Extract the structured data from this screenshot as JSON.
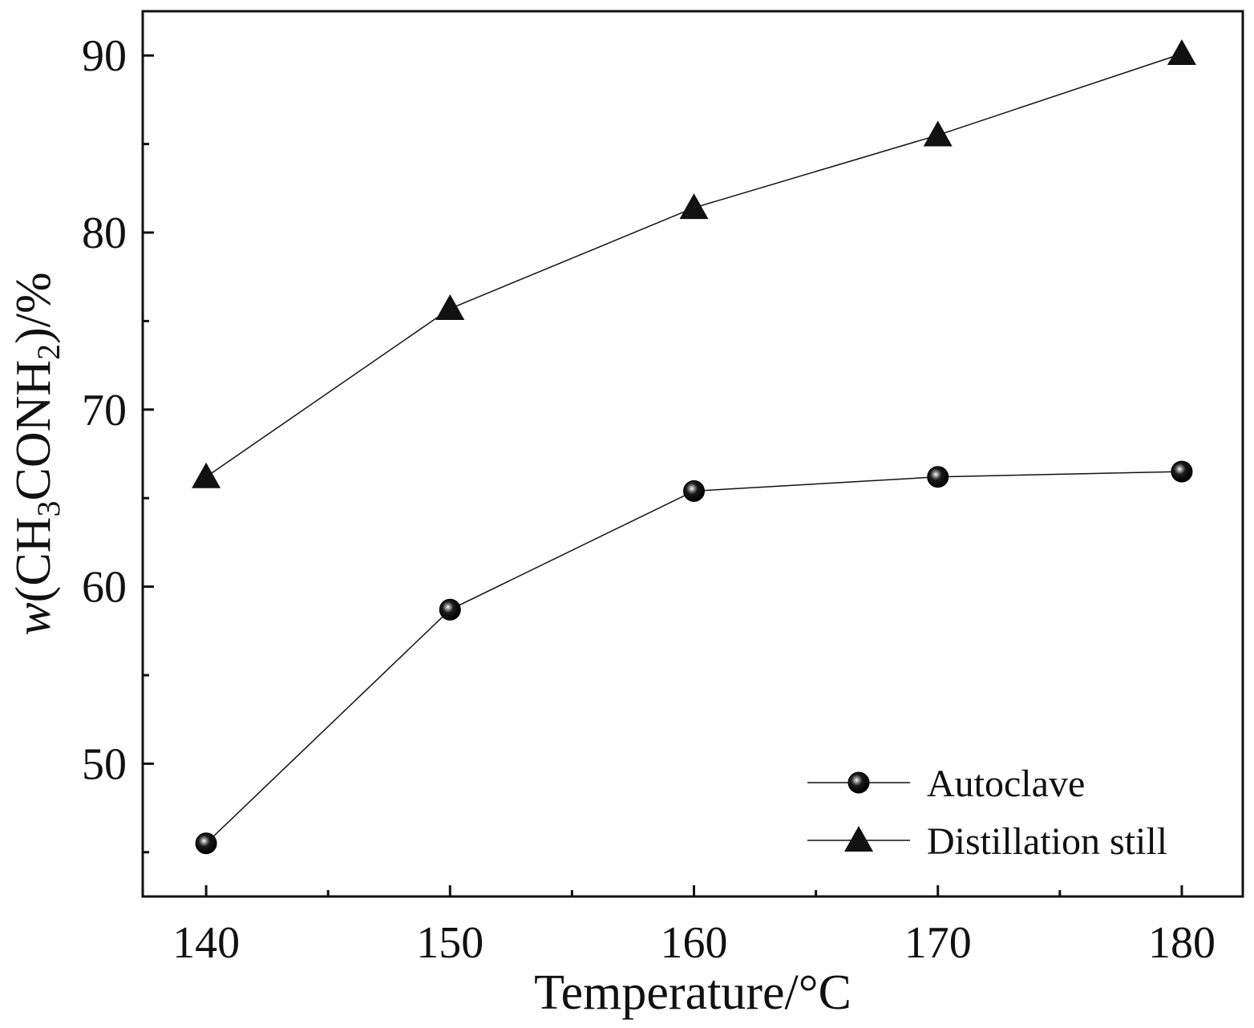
{
  "chart_data": {
    "type": "line",
    "title": "",
    "xlabel": "Temperature/°C",
    "ylabel": "w(CH3CONH2)/%",
    "ylabel_parts": [
      {
        "text": "w",
        "style": "italic"
      },
      {
        "text": "(CH",
        "style": "normal"
      },
      {
        "text": "3",
        "style": "sub"
      },
      {
        "text": "CONH",
        "style": "normal"
      },
      {
        "text": "2",
        "style": "sub"
      },
      {
        "text": ")/%",
        "style": "normal"
      }
    ],
    "x": [
      140,
      150,
      160,
      170,
      180
    ],
    "xlim": [
      137.4,
      182.5
    ],
    "ylim": [
      42.5,
      92.5
    ],
    "xticks": [
      140,
      150,
      160,
      170,
      180
    ],
    "xminor": [
      145,
      155,
      165,
      175
    ],
    "yticks": [
      50,
      60,
      70,
      80,
      90
    ],
    "yminor": [
      45,
      55,
      65,
      75,
      85
    ],
    "grid": false,
    "legend_position": "bottom-right",
    "series": [
      {
        "name": "Autoclave",
        "marker": "sphere",
        "values": [
          45.5,
          58.7,
          65.4,
          66.2,
          66.5
        ]
      },
      {
        "name": "Distillation still",
        "marker": "triangle",
        "values": [
          66.2,
          75.7,
          81.4,
          85.5,
          90.1
        ]
      }
    ]
  }
}
